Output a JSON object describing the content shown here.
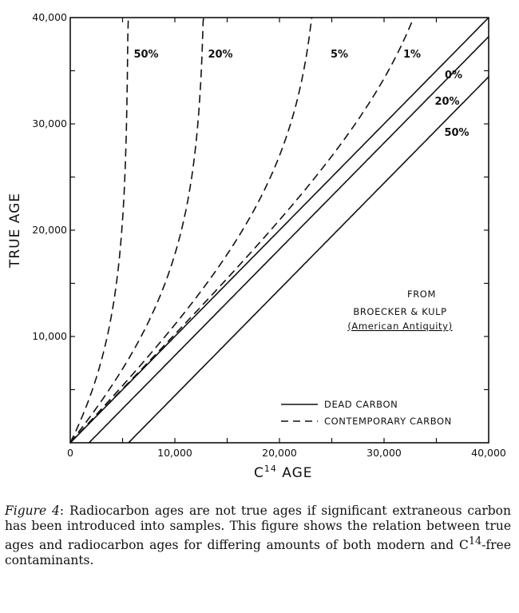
{
  "chart_data": {
    "type": "line",
    "xlabel": "C",
    "xlabel_sup": "14",
    "xlabel_suffix": " AGE",
    "ylabel": "TRUE AGE",
    "xlim": [
      0,
      40000
    ],
    "ylim": [
      0,
      40000
    ],
    "x_ticks": [
      0,
      5000,
      10000,
      15000,
      20000,
      25000,
      30000,
      35000,
      40000
    ],
    "y_ticks": [
      0,
      5000,
      10000,
      15000,
      20000,
      25000,
      30000,
      35000,
      40000
    ],
    "x_tick_labels": [
      {
        "value": 0,
        "label": "0"
      },
      {
        "value": 10000,
        "label": "10,000"
      },
      {
        "value": 20000,
        "label": "20,000"
      },
      {
        "value": 30000,
        "label": "30,000"
      },
      {
        "value": 40000,
        "label": "40,000"
      }
    ],
    "y_tick_labels": [
      {
        "value": 10000,
        "label": "10,000"
      },
      {
        "value": 20000,
        "label": "20,000"
      },
      {
        "value": 30000,
        "label": "30,000"
      },
      {
        "value": 40000,
        "label": "40,000"
      }
    ],
    "series": [
      {
        "name": "0%",
        "style": "solid",
        "type": "dead",
        "fraction": 0.0
      },
      {
        "name": "20%",
        "style": "solid",
        "type": "dead",
        "fraction": 0.2
      },
      {
        "name": "50%",
        "style": "solid",
        "type": "dead",
        "fraction": 0.5
      },
      {
        "name": "1%",
        "style": "dashed",
        "type": "contemporary",
        "fraction": 0.01
      },
      {
        "name": "5%",
        "style": "dashed",
        "type": "contemporary",
        "fraction": 0.05
      },
      {
        "name": "20%",
        "style": "dashed",
        "type": "contemporary",
        "fraction": 0.2
      },
      {
        "name": "50%",
        "style": "dashed",
        "type": "contemporary",
        "fraction": 0.5
      }
    ],
    "legend": [
      {
        "style": "solid",
        "label": "DEAD CARBON"
      },
      {
        "style": "dashed",
        "label": "CONTEMPORARY CARBON"
      }
    ],
    "legend_position": "bottom-right",
    "annotation": {
      "line1": "FROM",
      "line2": "BROECKER & KULP",
      "line3": "(American Antiquity)"
    },
    "grid": false
  },
  "caption": {
    "figure_label": "Figure 4",
    "text": ": Radiocarbon ages are not true ages if significant extraneous carbon has been introduced into samples. This figure shows the relation between true ages and radiocarbon ages for differing amounts of both modern and C",
    "sup": "14",
    "text_end": "-free contaminants."
  }
}
